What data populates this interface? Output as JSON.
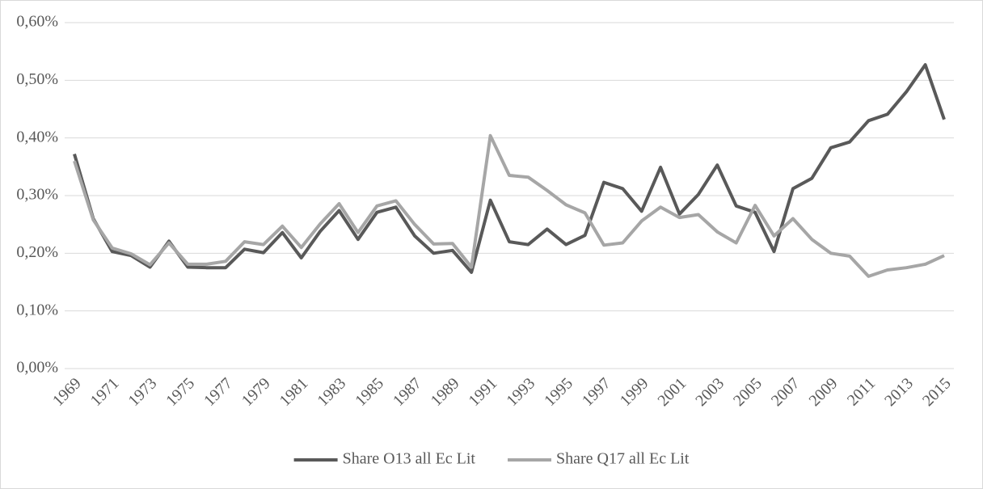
{
  "chart_data": {
    "type": "line",
    "categories": [
      "1969",
      null,
      "1971",
      null,
      "1973",
      null,
      "1975",
      null,
      "1977",
      null,
      "1979",
      null,
      "1981",
      null,
      "1983",
      null,
      "1985",
      null,
      "1987",
      null,
      "1989",
      null,
      "1991",
      null,
      "1993",
      null,
      "1995",
      null,
      "1997",
      null,
      "1999",
      null,
      "2001",
      null,
      "2003",
      null,
      "2005",
      null,
      "2007",
      null,
      "2009",
      null,
      "2011",
      null,
      "2013",
      null,
      "2015"
    ],
    "series": [
      {
        "name": "Share O13 all Ec Lit",
        "color": "#595959",
        "values": [
          0.372,
          0.26,
          0.203,
          0.196,
          0.176,
          0.221,
          0.176,
          0.175,
          0.175,
          0.207,
          0.201,
          0.236,
          0.192,
          0.238,
          0.274,
          0.224,
          0.271,
          0.28,
          0.23,
          0.2,
          0.205,
          0.167,
          0.292,
          0.22,
          0.215,
          0.242,
          0.215,
          0.231,
          0.323,
          0.312,
          0.273,
          0.349,
          0.268,
          0.302,
          0.353,
          0.282,
          0.271,
          0.203,
          0.312,
          0.33,
          0.383,
          0.393,
          0.43,
          0.441,
          0.48,
          0.527,
          0.432
        ]
      },
      {
        "name": "Share Q17 all Ec Lit",
        "color": "#a6a6a6",
        "values": [
          0.36,
          0.258,
          0.209,
          0.199,
          0.18,
          0.218,
          0.181,
          0.181,
          0.186,
          0.22,
          0.215,
          0.247,
          0.21,
          0.251,
          0.286,
          0.236,
          0.282,
          0.291,
          0.25,
          0.216,
          0.217,
          0.176,
          0.404,
          0.335,
          0.332,
          0.309,
          0.284,
          0.27,
          0.214,
          0.218,
          0.256,
          0.28,
          0.262,
          0.267,
          0.237,
          0.218,
          0.283,
          0.23,
          0.26,
          0.224,
          0.2,
          0.195,
          0.16,
          0.171,
          0.175,
          0.181,
          0.196
        ]
      }
    ],
    "ylim": [
      0,
      0.6
    ],
    "yticks": [
      {
        "value": 0,
        "label": "0,00%"
      },
      {
        "value": 0.1,
        "label": "0,10%"
      },
      {
        "value": 0.2,
        "label": "0,20%"
      },
      {
        "value": 0.3,
        "label": "0,30%"
      },
      {
        "value": 0.4,
        "label": "0,40%"
      },
      {
        "value": 0.5,
        "label": "0,50%"
      },
      {
        "value": 0.6,
        "label": "0,60%"
      }
    ],
    "grid": true,
    "legend": "bottom"
  }
}
